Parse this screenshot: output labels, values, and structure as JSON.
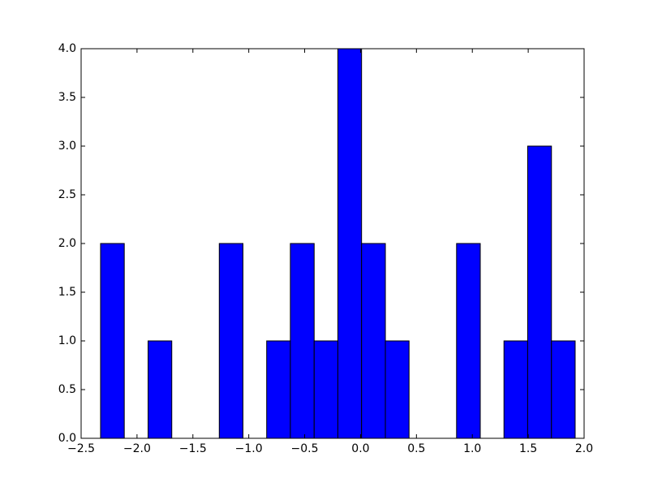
{
  "chart_data": {
    "type": "histogram",
    "bins": [
      -2.326,
      -2.114,
      -1.901,
      -1.689,
      -1.477,
      -1.264,
      -1.052,
      -0.84,
      -0.628,
      -0.415,
      -0.203,
      0.009,
      0.222,
      0.434,
      0.646,
      0.859,
      1.071,
      1.283,
      1.495,
      1.708,
      1.92
    ],
    "values": [
      2,
      0,
      1,
      0,
      0,
      2,
      0,
      1,
      2,
      1,
      4,
      2,
      1,
      0,
      0,
      2,
      0,
      1,
      3,
      1
    ],
    "color": "#0000ff",
    "xlim": [
      -2.5,
      2.0
    ],
    "ylim": [
      0,
      4
    ],
    "xticks": [
      {
        "value": -2.5,
        "label": "−2.5"
      },
      {
        "value": -2.0,
        "label": "−2.0"
      },
      {
        "value": -1.5,
        "label": "−1.5"
      },
      {
        "value": -1.0,
        "label": "−1.0"
      },
      {
        "value": -0.5,
        "label": "−0.5"
      },
      {
        "value": 0,
        "label": "0.0"
      },
      0.5,
      {
        "value": 1,
        "label": "1.0"
      },
      1.5,
      {
        "value": 2,
        "label": "2.0"
      }
    ],
    "yticks": [
      {
        "value": 0,
        "label": "0.0"
      },
      0.5,
      {
        "value": 1,
        "label": "1.0"
      },
      1.5,
      {
        "value": 2,
        "label": "2.0"
      },
      2.5,
      {
        "value": 3,
        "label": "3.0"
      },
      3.5,
      {
        "value": 4,
        "label": "4.0"
      }
    ]
  }
}
